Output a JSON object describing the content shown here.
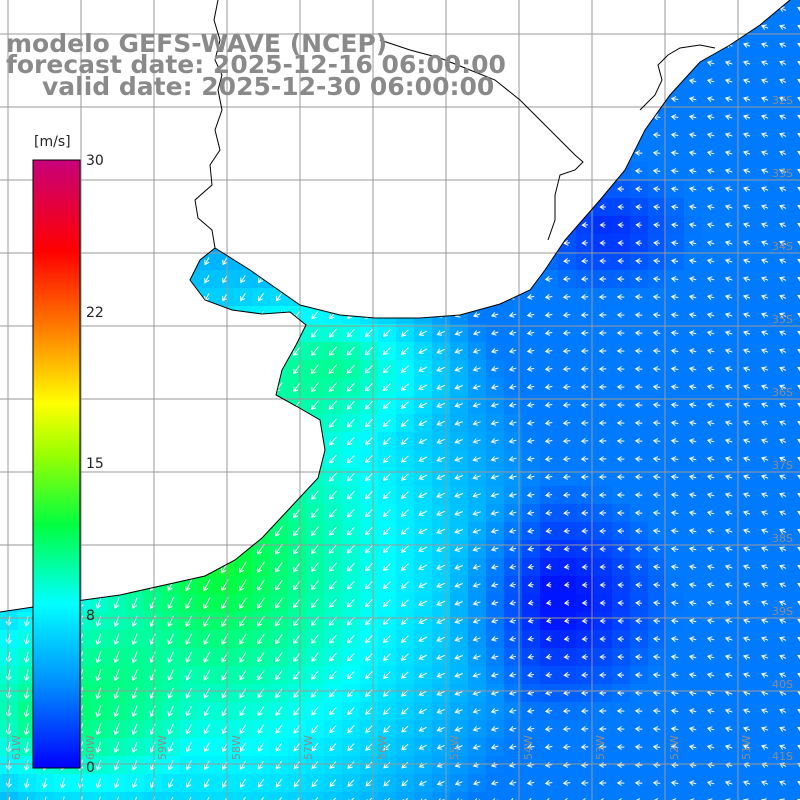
{
  "title": {
    "line1": "modelo GEFS-WAVE (NCEP)",
    "line2": "forecast date: 2025-12-16 06:00:00",
    "line3": "valid date: 2025-12-30 06:00:00"
  },
  "colorbar": {
    "unit": "[m/s]",
    "ticks": [
      "30",
      "22",
      "15",
      "8",
      "0"
    ],
    "range": [
      0,
      30
    ],
    "colors": [
      "#0000ff",
      "#00aaff",
      "#00ffff",
      "#00ff00",
      "#ffff00",
      "#ff8800",
      "#ff0000",
      "#c8007a"
    ]
  },
  "grid": {
    "lon_labels": [
      "61W",
      "60W",
      "59W",
      "58W",
      "57W",
      "56W",
      "55W",
      "54W",
      "53W",
      "52W",
      "51W"
    ],
    "lat_labels": [
      "32S",
      "33S",
      "34S",
      "35S",
      "36S",
      "37S",
      "38S",
      "39S",
      "40S",
      "41S"
    ]
  },
  "colors": {
    "land": "#ffffff",
    "coast": "#000000",
    "grid": "#999999",
    "arrow": "#ffffff"
  },
  "field": {
    "variable": "wind speed",
    "units": "m/s"
  }
}
